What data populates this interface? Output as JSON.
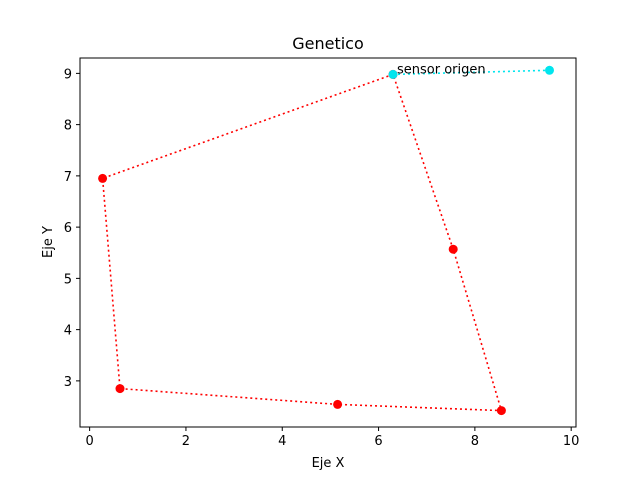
{
  "chart_data": {
    "type": "line",
    "title": "Genetico",
    "xlabel": "Eje X",
    "ylabel": "Eje Y",
    "xlim": [
      -0.2,
      10.1
    ],
    "ylim": [
      2.1,
      9.3
    ],
    "xticks": [
      0,
      2,
      4,
      6,
      8,
      10
    ],
    "yticks": [
      3,
      4,
      5,
      6,
      7,
      8,
      9
    ],
    "grid": false,
    "series": [
      {
        "color": "#ff0000",
        "linestyle": "dotted",
        "marker": "circle",
        "x": [
          6.3,
          0.27,
          0.63,
          5.15,
          8.55,
          7.55,
          6.3
        ],
        "y": [
          8.98,
          6.95,
          2.85,
          2.54,
          2.42,
          5.57,
          8.98
        ]
      },
      {
        "color": "#00e5ee",
        "linestyle": "dotted",
        "marker": "circle",
        "x": [
          6.3,
          9.55
        ],
        "y": [
          8.98,
          9.06
        ]
      }
    ],
    "annotations": [
      {
        "text": "sensor origen",
        "x": 6.3,
        "y": 8.98
      }
    ]
  }
}
